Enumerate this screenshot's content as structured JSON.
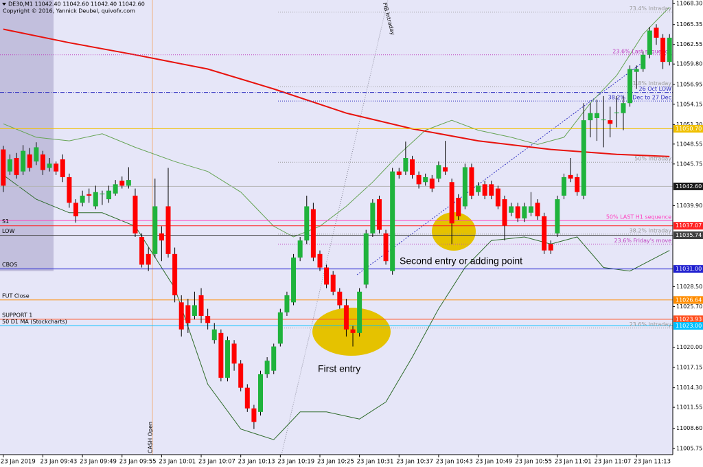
{
  "chart_data": {
    "type": "candlestick",
    "title": "DE30,M1  11042.40 11042.60 11042.40 11042.60",
    "subtitle": "Copyright © 2016, Yannick Deubel, quivofx.com",
    "categories": [
      "23 Jan 2019",
      null,
      null,
      null,
      null,
      null,
      "23 Jan 09:43",
      null,
      null,
      null,
      null,
      null,
      "23 Jan 09:49",
      null,
      null,
      null,
      null,
      null,
      "23 Jan 09:55",
      null,
      null,
      null,
      null,
      null,
      "23 Jan 10:01",
      null,
      null,
      null,
      null,
      null,
      "23 Jan 10:07",
      null,
      null,
      null,
      null,
      null,
      "23 Jan 10:13",
      null,
      null,
      null,
      null,
      null,
      "23 Jan 10:19",
      null,
      null,
      null,
      null,
      null,
      "23 Jan 10:25",
      null,
      null,
      null,
      null,
      null,
      "23 Jan 10:31",
      null,
      null,
      null,
      null,
      null,
      "23 Jan 10:37",
      null,
      null,
      null,
      null,
      null,
      "23 Jan 10:43",
      null,
      null,
      null,
      null,
      null,
      "23 Jan 10:49",
      null,
      null,
      null,
      null,
      null,
      "23 Jan 10:55",
      null,
      null,
      null,
      null,
      null,
      "23 Jan 11:01",
      null,
      null,
      null,
      null,
      null,
      "23 Jan 11:07",
      null,
      null,
      null,
      null,
      null,
      "23 Jan 11:13",
      null,
      null,
      null,
      null,
      null
    ],
    "open": [
      11047.8,
      11044.7,
      11046.6,
      11044.7,
      11047.1,
      11046.1,
      11047.1,
      11045.2,
      11045.8,
      11046.4,
      11043.9,
      11040.3,
      11040.3,
      11041.5,
      11039.8,
      11041.5,
      11040.8,
      11041.6,
      11043.4,
      11042.7,
      11041.3,
      11035.5,
      11033.1,
      11033.1,
      11036.0,
      11039.8,
      11033.1,
      11026.3,
      11025.9,
      11024.4,
      11027.3,
      11024.4,
      11021.0,
      11022.0,
      11015.7,
      11020.5,
      11017.7,
      11014.3,
      11011.4,
      11010.9,
      11016.2,
      11016.7,
      11020.5,
      11024.9,
      11026.3,
      11032.6,
      11035.0,
      11039.4,
      11033.1,
      11031.2,
      11030.2,
      11027.8,
      11025.9,
      11022.5,
      11022.0,
      11028.8,
      11036.0,
      11040.8,
      11036.0,
      11030.7,
      11044.7,
      11044.7,
      11046.4,
      11044.2,
      11043.2,
      11043.7,
      11043.7,
      11045.3,
      11043.2,
      11041.0,
      11039.8,
      11045.3,
      11041.8,
      11042.9,
      11042.9,
      11042.3,
      11040.8,
      11038.9,
      11039.8,
      11038.1,
      11038.9,
      11040.3,
      11038.4,
      11034.5,
      11036.0,
      11041.3,
      11044.2,
      11043.9,
      11041.3,
      11051.9,
      11052.2,
      11051.9,
      11051.9,
      11052.9,
      11052.9,
      11054.3,
      11058.7,
      11059.1,
      11061.1,
      11064.9,
      11063.5,
      11060.1
    ],
    "high": [
      11048.3,
      11047.1,
      11047.3,
      11048.4,
      11048.0,
      11048.8,
      11047.6,
      11046.6,
      11046.1,
      11047.1,
      11044.4,
      11040.8,
      11042.0,
      11042.3,
      11042.7,
      11042.0,
      11042.7,
      11043.5,
      11044.0,
      11045.3,
      11042.3,
      11036.0,
      11034.0,
      11043.7,
      11037.0,
      11045.2,
      11034.0,
      11027.3,
      11026.8,
      11027.8,
      11028.3,
      11025.4,
      11023.4,
      11022.5,
      11021.5,
      11021.0,
      11018.2,
      11014.8,
      11011.9,
      11016.7,
      11018.6,
      11020.5,
      11025.4,
      11027.8,
      11033.1,
      11035.5,
      11041.3,
      11040.3,
      11033.6,
      11031.6,
      11030.7,
      11028.3,
      11026.8,
      11023.0,
      11028.3,
      11036.5,
      11040.8,
      11041.3,
      11036.5,
      11045.2,
      11045.2,
      11048.9,
      11046.9,
      11044.7,
      11044.4,
      11044.2,
      11046.1,
      11049.0,
      11043.7,
      11041.5,
      11045.8,
      11045.8,
      11043.2,
      11043.4,
      11043.4,
      11042.7,
      11041.3,
      11040.3,
      11040.3,
      11040.3,
      11041.8,
      11040.8,
      11038.9,
      11035.0,
      11041.3,
      11044.4,
      11046.6,
      11044.4,
      11054.3,
      11054.3,
      11054.8,
      11055.3,
      11053.8,
      11055.3,
      11055.3,
      11059.6,
      11059.6,
      11061.6,
      11065.0,
      11065.4,
      11064.0,
      11064.0
    ],
    "low": [
      11041.8,
      11044.2,
      11043.7,
      11044.2,
      11044.7,
      11045.6,
      11044.2,
      11044.7,
      11044.2,
      11043.2,
      11039.6,
      11037.5,
      11039.8,
      11040.3,
      11039.4,
      11040.0,
      11040.3,
      11041.3,
      11042.3,
      11042.3,
      11035.5,
      11031.2,
      11030.7,
      11032.6,
      11032.1,
      11032.6,
      11026.3,
      11021.5,
      11022.0,
      11023.9,
      11023.4,
      11022.5,
      11020.5,
      11015.2,
      11015.2,
      11016.7,
      11013.8,
      11010.9,
      11008.5,
      11010.4,
      11015.7,
      11016.2,
      11020.1,
      11024.4,
      11025.9,
      11032.1,
      11034.5,
      11032.1,
      11030.7,
      11028.3,
      11027.3,
      11025.4,
      11021.5,
      11020.1,
      11021.5,
      11028.3,
      11035.5,
      11036.0,
      11031.6,
      11030.2,
      11043.7,
      11044.2,
      11043.7,
      11042.3,
      11042.7,
      11041.8,
      11043.2,
      11044.2,
      11034.5,
      11037.9,
      11039.4,
      11040.8,
      11041.3,
      11040.8,
      11040.8,
      11039.4,
      11035.0,
      11038.4,
      11037.6,
      11037.6,
      11038.4,
      11037.9,
      11033.1,
      11033.1,
      11035.5,
      11040.8,
      11043.2,
      11041.3,
      11040.8,
      11049.5,
      11049.0,
      11048.1,
      11049.5,
      11050.9,
      11050.5,
      11053.8,
      11056.3,
      11058.7,
      11060.6,
      11062.5,
      11059.1,
      11059.6
    ],
    "close": [
      11042.7,
      11046.4,
      11044.2,
      11047.6,
      11045.2,
      11048.1,
      11044.9,
      11045.8,
      11044.7,
      11043.9,
      11040.3,
      11038.4,
      11041.3,
      11041.3,
      11041.8,
      11041.6,
      11042.0,
      11042.9,
      11042.7,
      11043.5,
      11036.0,
      11031.6,
      11031.6,
      11039.8,
      11035.0,
      11033.1,
      11027.3,
      11022.5,
      11023.4,
      11025.9,
      11024.4,
      11023.4,
      11022.5,
      11015.7,
      11021.0,
      11017.7,
      11014.3,
      11011.4,
      11009.5,
      11016.2,
      11018.1,
      11020.1,
      11024.9,
      11027.3,
      11032.6,
      11035.0,
      11039.8,
      11032.6,
      11031.2,
      11028.8,
      11027.8,
      11025.9,
      11022.5,
      11022.0,
      11027.8,
      11036.0,
      11040.3,
      11036.5,
      11032.1,
      11044.7,
      11044.2,
      11046.6,
      11044.2,
      11042.9,
      11043.9,
      11042.3,
      11045.6,
      11044.7,
      11037.4,
      11038.4,
      11045.3,
      11041.3,
      11042.7,
      11041.3,
      11041.3,
      11039.8,
      11037.1,
      11039.8,
      11038.1,
      11039.8,
      11039.8,
      11038.4,
      11033.6,
      11033.6,
      11040.8,
      11043.9,
      11043.7,
      11041.8,
      11051.9,
      11052.9,
      11052.9,
      11052.0,
      11051.4,
      11053.0,
      11054.3,
      11059.1,
      11059.1,
      11061.1,
      11064.5,
      11063.5,
      11060.1,
      11063.5
    ],
    "up_color": "#1fb33c",
    "down_color": "#ff0000",
    "ylim": [
      11004.9,
      11068.8
    ],
    "yticks": [
      {
        "value": 11068.3,
        "label": "11068.30"
      },
      11065.35,
      11062.55,
      {
        "value": 11059.8,
        "label": "11059.80"
      },
      11056.95,
      11054.15,
      {
        "value": 11051.3,
        "label": "11051.30"
      },
      11048.55,
      11045.75,
      {
        "value": 11039.9,
        "label": "11039.90"
      },
      {
        "value": 11028.5,
        "label": "11028.50"
      },
      {
        "value": 11025.7,
        "label": "11025.70"
      },
      {
        "value": 11020,
        "label": "11020.00"
      },
      11017.15,
      {
        "value": 11014.3,
        "label": "11014.30"
      },
      11011.55,
      {
        "value": 11008.6,
        "label": "11008.60"
      },
      11005.75
    ],
    "overlays": [
      {
        "color": "#66a455",
        "x": [
          0,
          5,
          10,
          15,
          20,
          26,
          31,
          36,
          41,
          44,
          48,
          52,
          56,
          60,
          64,
          68,
          72,
          77,
          81,
          85,
          89,
          93,
          97,
          101
        ],
        "values": [
          11051.4,
          11049.5,
          11049.0,
          11050.0,
          11048.1,
          11046.1,
          11044.7,
          11041.8,
          11037.0,
          11035.5,
          11037.0,
          11039.8,
          11043.2,
          11047.1,
          11050.5,
          11051.9,
          11050.5,
          11049.5,
          11048.5,
          11049.5,
          11054.3,
          11058.2,
          11064.0,
          11067.8
        ]
      },
      {
        "color": "#2e6b2a",
        "x": [
          0,
          5,
          10,
          15,
          20,
          26,
          31,
          36,
          41,
          45,
          49,
          54,
          58,
          62,
          66,
          70,
          74,
          79,
          83,
          87,
          91,
          95,
          101
        ],
        "values": [
          11044.2,
          11040.8,
          11038.9,
          11038.9,
          11037.0,
          11028.3,
          11014.8,
          11008.5,
          11007.0,
          11010.9,
          11010.9,
          11009.9,
          11012.3,
          11018.6,
          11025.4,
          11031.2,
          11035.0,
          11035.5,
          11034.5,
          11035.5,
          11031.2,
          11030.7,
          11033.6
        ]
      },
      {
        "color": "#e8120c",
        "x": [
          0,
          10,
          20,
          31,
          41,
          52,
          62,
          72,
          83,
          93,
          101
        ],
        "values": [
          11064.7,
          11062.8,
          11061.1,
          11059.1,
          11056.3,
          11052.9,
          11050.7,
          11049.0,
          11047.8,
          11047.1,
          11046.8
        ]
      }
    ],
    "levels": [
      {
        "text": "73.4%  Intraday",
        "value": 11067.1,
        "color": "#9a9a9a",
        "dash": "dot",
        "span": "right"
      },
      {
        "text": "23.6%  Last sequence",
        "value": 11061.1,
        "color": "#c040c0",
        "dash": "dot",
        "span": "full"
      },
      {
        "text": "61.8%  Intraday",
        "value": 11056.6,
        "color": "#9a9a9a",
        "dash": "dot",
        "span": "right"
      },
      {
        "text": "26 Oct LOW",
        "value": 11055.8,
        "color": "#3030c0",
        "dash": "dashdot",
        "span": "full"
      },
      {
        "text": "38.2%  3 Dec to 27 Dec",
        "value": 11054.6,
        "color": "#3030c0",
        "dash": "dot",
        "span": "right"
      },
      {
        "value": 11050.7,
        "price_label": "11050.70",
        "color": "#f0c000",
        "span": "full"
      },
      {
        "text": "50%  Intraday",
        "value": 11046.0,
        "color": "#9a9a9a",
        "dash": "dot",
        "span": "right"
      },
      {
        "value": 11042.6,
        "price_label": "11042.60",
        "color": "#b4b4b4",
        "box_color": "#1a1a1a",
        "span": "full"
      },
      {
        "text": "50%  LAST H1 sequence",
        "value": 11037.8,
        "color": "#ff40c0",
        "span": "full"
      },
      {
        "side_text": "S1",
        "value": 11037.07,
        "price_label": "11037.07",
        "color": "#ff2020",
        "span": "full"
      },
      {
        "text": "38.2%  Intraday",
        "value": 11035.9,
        "color": "#9a9a9a",
        "dash": "dot",
        "span": "right"
      },
      {
        "side_text": "LOW",
        "value": 11035.74,
        "price_label": "11035.74",
        "color": "#404040",
        "span": "full"
      },
      {
        "text": "23.6%  Friday's move",
        "value": 11034.5,
        "color": "#c040c0",
        "dash": "dot",
        "span": "right"
      },
      {
        "side_text": "CBOS",
        "value": 11031.0,
        "price_label": "11031.00",
        "color": "#2020d0",
        "span": "full"
      },
      {
        "side_text": "FUT Close",
        "value": 11026.64,
        "price_label": "11026.64",
        "color": "#ff8c00",
        "span": "full"
      },
      {
        "side_text": "SUPPORT 1",
        "value": 11023.93,
        "price_label": "11023.93",
        "color": "#ff5020",
        "span": "full"
      },
      {
        "side_text": "50 D1 MA (Stockcharts)",
        "value": 11023.0,
        "price_label": "11023.00",
        "color": "#00c0ff",
        "span": "full"
      },
      {
        "text": "23.6%  Intraday",
        "value": 11022.7,
        "color": "#9a9a9a",
        "dash": "dot",
        "span": "right"
      }
    ],
    "annotations": [
      "First entry",
      "Second entry or adding point",
      "FIB Intraday",
      "CASH Open"
    ]
  }
}
